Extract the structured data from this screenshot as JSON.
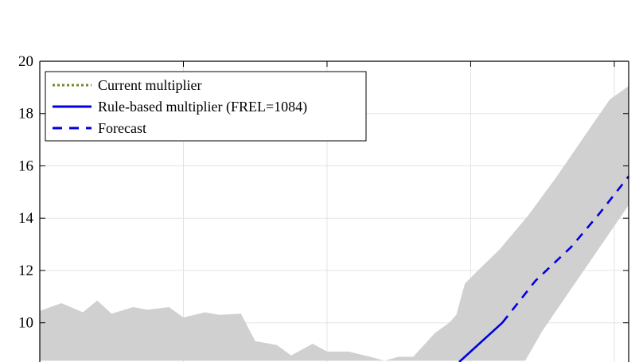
{
  "chart_data": {
    "type": "line",
    "title": "",
    "xlabel": "",
    "ylabel": "",
    "ylim": [
      8.5,
      20
    ],
    "yticks": [
      10,
      12,
      14,
      16,
      18,
      20
    ],
    "xlim": [
      0,
      41
    ],
    "grid": true,
    "legend_position": "top-left",
    "legend": [
      {
        "label": "Current multiplier",
        "style": "dotted",
        "color": "#6b8e23"
      },
      {
        "label": "Rule-based multiplier (FREL=1084)",
        "style": "solid",
        "color": "#0000e0"
      },
      {
        "label": "Forecast",
        "style": "dashed",
        "color": "#0000e0"
      }
    ],
    "band": {
      "color": "#d0d0d0",
      "upper": [
        [
          0,
          10.45
        ],
        [
          1.5,
          10.75
        ],
        [
          3,
          10.4
        ],
        [
          4,
          10.85
        ],
        [
          5,
          10.35
        ],
        [
          6.5,
          10.6
        ],
        [
          7.5,
          10.5
        ],
        [
          9,
          10.6
        ],
        [
          10,
          10.2
        ],
        [
          11.5,
          10.4
        ],
        [
          12.5,
          10.3
        ],
        [
          14,
          10.35
        ],
        [
          15,
          9.3
        ],
        [
          16.5,
          9.15
        ],
        [
          17.5,
          8.75
        ],
        [
          19,
          9.2
        ],
        [
          20,
          8.9
        ],
        [
          21.5,
          8.9
        ],
        [
          23,
          8.7
        ],
        [
          24,
          8.55
        ],
        [
          25,
          8.7
        ],
        [
          26,
          8.7
        ],
        [
          27.5,
          9.6
        ],
        [
          28.5,
          10.0
        ],
        [
          29,
          10.3
        ],
        [
          29.6,
          11.5
        ],
        [
          30.5,
          12.0
        ],
        [
          32,
          12.8
        ],
        [
          34,
          14.1
        ],
        [
          36,
          15.6
        ],
        [
          38,
          17.2
        ],
        [
          39.7,
          18.55
        ],
        [
          41,
          19.05
        ]
      ],
      "lower": [
        [
          41,
          14.5
        ],
        [
          39,
          12.9
        ],
        [
          37,
          11.3
        ],
        [
          35,
          9.7
        ],
        [
          33.8,
          8.55
        ],
        [
          0,
          8.55
        ]
      ]
    },
    "series": [
      {
        "name": "Rule-based multiplier (FREL=1084)",
        "style": "solid",
        "color": "#0000e0",
        "x": [
          29.2,
          32.2
        ],
        "y": [
          8.5,
          10.0
        ]
      },
      {
        "name": "Forecast",
        "style": "dashed",
        "color": "#0000e0",
        "x": [
          32.2,
          34.5,
          37,
          39,
          41
        ],
        "y": [
          10.0,
          11.6,
          12.9,
          14.2,
          15.6
        ]
      }
    ]
  }
}
